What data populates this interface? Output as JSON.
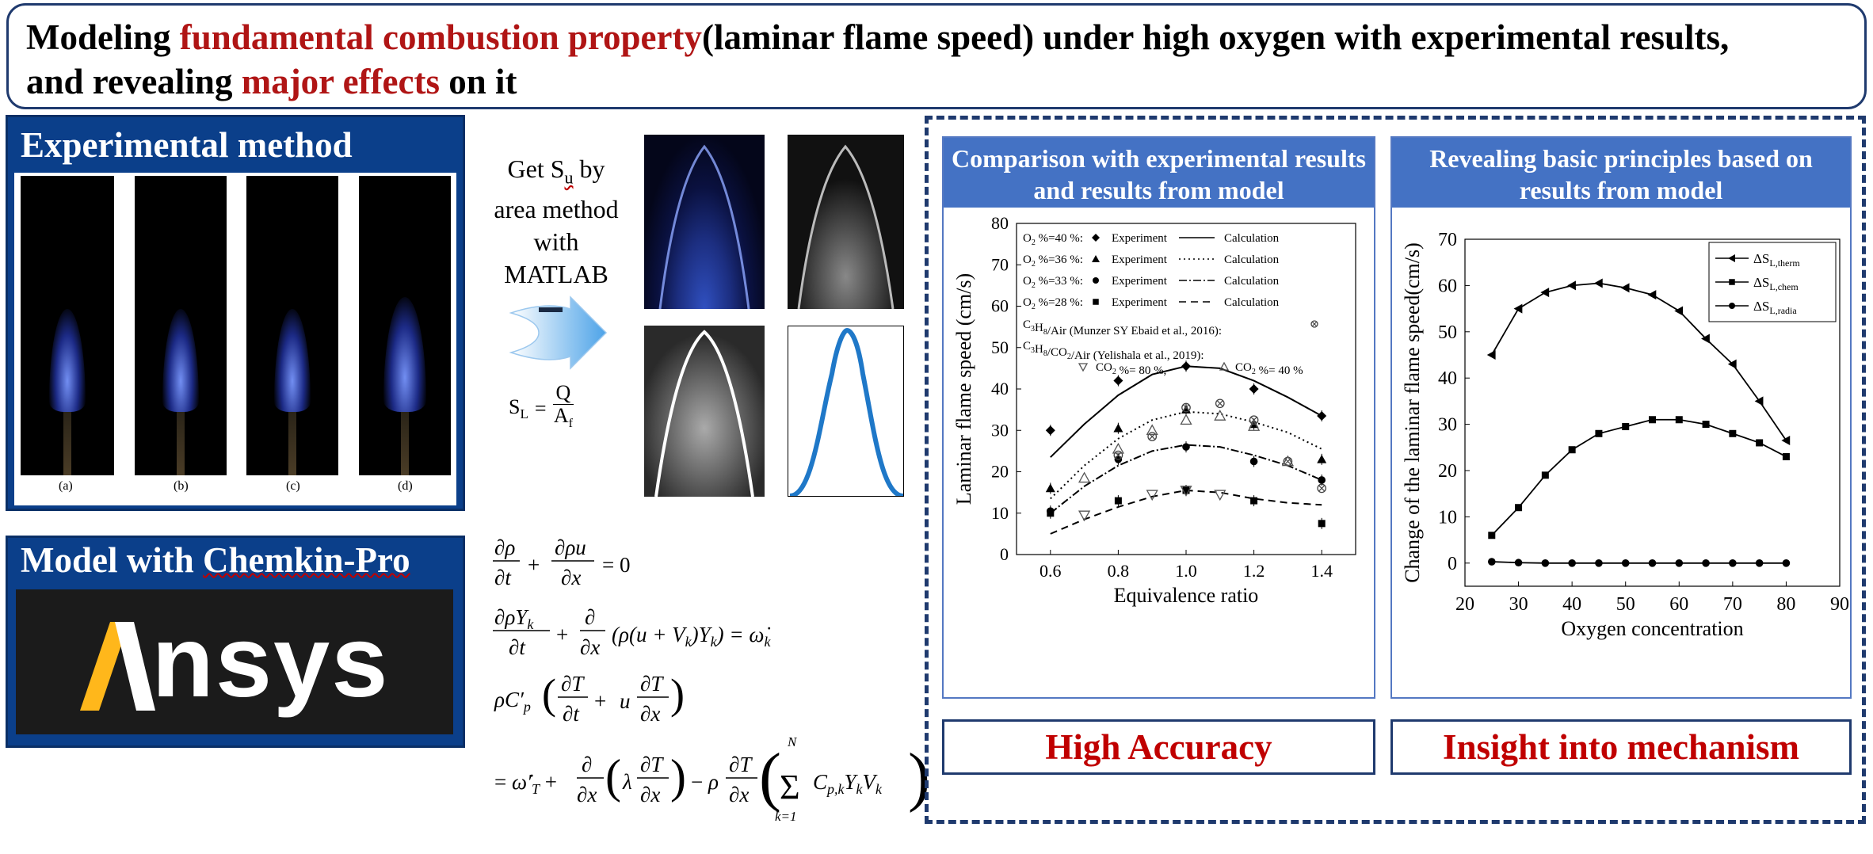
{
  "header": {
    "title_pre": "Modeling ",
    "title_red1": "fundamental combustion property",
    "title_mid": "(laminar flame speed) under high oxygen with experimental results, and revealing ",
    "title_red2": "major effects",
    "title_post": " on it"
  },
  "experimental": {
    "title": "Experimental method",
    "captions": [
      "(a)",
      "(b)",
      "(c)",
      "(d)"
    ]
  },
  "model": {
    "title_pre": "Model with ",
    "title_link": "Chemkin-Pro",
    "logo_text": "Ansys"
  },
  "method": {
    "line1": "Get S",
    "sub": "u",
    "line1b": " by",
    "line2": "area method",
    "line3": "with",
    "line4": "MATLAB",
    "formula_lhs": "S",
    "formula_lhs_sub": "L",
    "formula_num": "Q",
    "formula_den": "A",
    "formula_den_sub": "f"
  },
  "equations": {
    "eq1": "∂ρ/∂t + ∂ρu/∂x = 0",
    "eq2": "∂ρY_k/∂t + ∂/∂x (ρ(u + V_k)Y_k) = ω̇_k",
    "eq3": "ρC′_p (∂T/∂t + u ∂T/∂x)",
    "eq4": "= ω̇′_T + ∂/∂x (λ ∂T/∂x) − ρ ∂T/∂x (Σ_{k=1}^{N} C_{p,k} Y_k V_k)"
  },
  "colors": {
    "title_border": "#1f3a6e",
    "red": "#b01515",
    "panel_blue": "#0b3f8a",
    "chart_head": "#4472c4",
    "result_red": "#c00000"
  },
  "chart_left": {
    "header": "Comparison with experimental results and results from model",
    "result": "High Accuracy"
  },
  "chart_right": {
    "header": "Revealing basic principles based on results from model",
    "result": "Insight into mechanism"
  },
  "chart_data": [
    {
      "type": "scatter",
      "xlabel": "Equivalence ratio",
      "ylabel": "Laminar flame speed (cm/s)",
      "xlim": [
        0.5,
        1.5
      ],
      "ylim": [
        0,
        80
      ],
      "xticks": [
        0.6,
        0.8,
        1.0,
        1.2,
        1.4
      ],
      "yticks": [
        0,
        10,
        20,
        30,
        40,
        50,
        60,
        70,
        80
      ],
      "legend": [
        {
          "label": "O",
          "sub": "2",
          "label2": " %=40 %:",
          "marker": "diamond",
          "exp": "Experiment",
          "line": "solid",
          "calc": "Calculation"
        },
        {
          "label": "O",
          "sub": "2",
          "label2": " %=36 %:",
          "marker": "triangle",
          "exp": "Experiment",
          "line": "dotted",
          "calc": "Calculation"
        },
        {
          "label": "O",
          "sub": "2",
          "label2": " %=33 %:",
          "marker": "circle",
          "exp": "Experiment",
          "line": "dashdot",
          "calc": "Calculation"
        },
        {
          "label": "O",
          "sub": "2",
          "label2": " %=28 %:",
          "marker": "square",
          "exp": "Experiment",
          "line": "dashed",
          "calc": "Calculation"
        }
      ],
      "legend_extra": [
        "C3H8/Air (Munzer SY Ebaid et al., 2016):",
        "C3H8/CO2/Air (Yelishala et al., 2019):",
        "CO2 %= 80 %,",
        "CO2 %= 40 %"
      ],
      "series": [
        {
          "name": "O2 %=40 %",
          "marker": "diamond",
          "x": [
            0.6,
            0.8,
            1.0,
            1.2,
            1.4
          ],
          "y": [
            30,
            42,
            45.5,
            40,
            33.5
          ],
          "calc_x": [
            0.6,
            0.7,
            0.8,
            0.9,
            1.0,
            1.1,
            1.2,
            1.3,
            1.4
          ],
          "calc_y": [
            23.5,
            31.5,
            38.5,
            43.5,
            45.5,
            45,
            42,
            38,
            33.5
          ]
        },
        {
          "name": "O2 %=36 %",
          "marker": "triangle",
          "x": [
            0.6,
            0.8,
            1.0,
            1.2,
            1.4
          ],
          "y": [
            16,
            30.5,
            35,
            31.5,
            23
          ],
          "calc_x": [
            0.6,
            0.7,
            0.8,
            0.9,
            1.0,
            1.1,
            1.2,
            1.3,
            1.4
          ],
          "calc_y": [
            13.5,
            21.5,
            28,
            32.5,
            34.5,
            34,
            32,
            29.5,
            25.5
          ]
        },
        {
          "name": "O2 %=33 %",
          "marker": "circle",
          "x": [
            0.6,
            0.8,
            1.0,
            1.2,
            1.4
          ],
          "y": [
            10.5,
            23,
            26,
            22.5,
            18
          ],
          "calc_x": [
            0.6,
            0.7,
            0.8,
            0.9,
            1.0,
            1.1,
            1.2,
            1.3,
            1.4
          ],
          "calc_y": [
            10,
            16.5,
            21.5,
            25,
            26.5,
            26,
            24,
            21.5,
            18
          ]
        },
        {
          "name": "O2 %=28 %",
          "marker": "square",
          "x": [
            0.6,
            0.8,
            1.0,
            1.2,
            1.4
          ],
          "y": [
            10,
            13,
            15.5,
            13,
            7.5
          ],
          "calc_x": [
            0.6,
            0.7,
            0.8,
            0.9,
            1.0,
            1.1,
            1.2,
            1.3,
            1.4
          ],
          "calc_y": [
            5,
            8.5,
            11.5,
            14,
            15.5,
            15,
            13.5,
            12.5,
            12
          ]
        },
        {
          "name": "C3H8/Air (Munzer SY Ebaid et al., 2016)",
          "marker": "circle-x",
          "x": [
            0.8,
            0.9,
            1.0,
            1.1,
            1.2,
            1.3,
            1.4
          ],
          "y": [
            24,
            28.5,
            35.5,
            36.5,
            32.5,
            22.5,
            16
          ]
        },
        {
          "name": "CO2 %= 80 %",
          "marker": "triangle-down",
          "x": [
            0.7,
            0.9,
            1.0,
            1.1
          ],
          "y": [
            9.5,
            14.5,
            15.5,
            14.5
          ]
        },
        {
          "name": "CO2 %= 40 %",
          "marker": "triangle-open",
          "x": [
            0.7,
            0.8,
            0.9,
            1.0,
            1.1,
            1.2,
            1.3
          ],
          "y": [
            18.5,
            25.5,
            30,
            32.5,
            33.5,
            31,
            22.5
          ]
        }
      ]
    },
    {
      "type": "line",
      "xlabel": "Oxygen concentration",
      "ylabel": "Change of the laminar flame speed(cm/s)",
      "xlim": [
        20,
        90
      ],
      "ylim": [
        -5,
        70
      ],
      "xticks": [
        20,
        30,
        40,
        50,
        60,
        70,
        80,
        90
      ],
      "yticks": [
        0,
        10,
        20,
        30,
        40,
        50,
        60,
        70
      ],
      "series": [
        {
          "name": "ΔSL,therm",
          "label": "ΔS",
          "sub": "L,therm",
          "marker": "triangle-left",
          "x": [
            25,
            30,
            35,
            40,
            45,
            50,
            55,
            60,
            65,
            70,
            75,
            80
          ],
          "y": [
            45,
            55,
            58.5,
            60,
            60.5,
            59.5,
            58,
            54.5,
            48.5,
            43,
            35,
            26.5
          ]
        },
        {
          "name": "ΔSL,chem",
          "label": "ΔS",
          "sub": "L,chem",
          "marker": "square",
          "x": [
            25,
            30,
            35,
            40,
            45,
            50,
            55,
            60,
            65,
            70,
            75,
            80
          ],
          "y": [
            6,
            12,
            19,
            24.5,
            28,
            29.5,
            31,
            31,
            30,
            28,
            26,
            23
          ]
        },
        {
          "name": "ΔSL,radia",
          "label": "ΔS",
          "sub": "L,radia",
          "marker": "circle",
          "x": [
            25,
            30,
            35,
            40,
            45,
            50,
            55,
            60,
            65,
            70,
            75,
            80
          ],
          "y": [
            0.3,
            0.1,
            0,
            0,
            0,
            0,
            0,
            0,
            0,
            0,
            0,
            0
          ]
        }
      ]
    }
  ]
}
